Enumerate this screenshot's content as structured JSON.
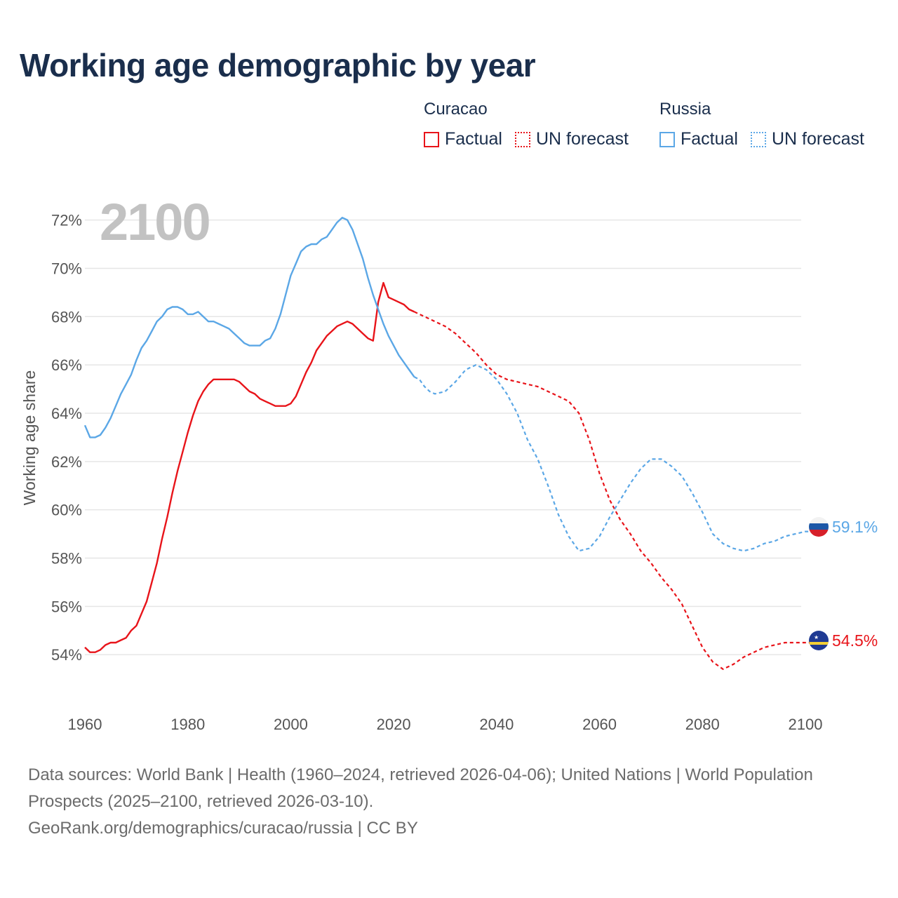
{
  "title": "Working age demographic by year",
  "legend": [
    {
      "country": "Curacao",
      "factual_label": "Factual",
      "forecast_label": "UN forecast",
      "color": "#e8141a"
    },
    {
      "country": "Russia",
      "factual_label": "Factual",
      "forecast_label": "UN forecast",
      "color": "#5ba7e6"
    }
  ],
  "year_watermark": "2100",
  "end_labels": {
    "russia": "59.1%",
    "curacao": "54.5%"
  },
  "footer": {
    "sources": "Data sources: World Bank | Health (1960–2024, retrieved 2026-04-06); United Nations | World Population Prospects (2025–2100, retrieved 2026-03-10).",
    "credit": "GeoRank.org/demographics/curacao/russia | CC BY"
  },
  "chart_data": {
    "type": "line",
    "ylabel": "Working age share",
    "xlabel": "",
    "xlim": [
      1960,
      2103
    ],
    "ylim": [
      52,
      73.5
    ],
    "x_ticks": [
      1960,
      1980,
      2000,
      2020,
      2040,
      2060,
      2080,
      2100
    ],
    "y_ticks": [
      54,
      56,
      58,
      60,
      62,
      64,
      66,
      68,
      70,
      72
    ],
    "y_tick_labels": [
      "54%",
      "56%",
      "58%",
      "60%",
      "62%",
      "64%",
      "66%",
      "68%",
      "70%",
      "72%"
    ],
    "forecast_start": 2024,
    "series": [
      {
        "name": "Curacao",
        "color": "#e8141a",
        "points": [
          [
            1960,
            54.3
          ],
          [
            1961,
            54.1
          ],
          [
            1962,
            54.1
          ],
          [
            1963,
            54.2
          ],
          [
            1964,
            54.4
          ],
          [
            1965,
            54.5
          ],
          [
            1966,
            54.5
          ],
          [
            1967,
            54.6
          ],
          [
            1968,
            54.7
          ],
          [
            1969,
            55.0
          ],
          [
            1970,
            55.2
          ],
          [
            1971,
            55.7
          ],
          [
            1972,
            56.2
          ],
          [
            1973,
            57.0
          ],
          [
            1974,
            57.8
          ],
          [
            1975,
            58.8
          ],
          [
            1976,
            59.7
          ],
          [
            1977,
            60.7
          ],
          [
            1978,
            61.6
          ],
          [
            1979,
            62.4
          ],
          [
            1980,
            63.2
          ],
          [
            1981,
            63.9
          ],
          [
            1982,
            64.5
          ],
          [
            1983,
            64.9
          ],
          [
            1984,
            65.2
          ],
          [
            1985,
            65.4
          ],
          [
            1986,
            65.4
          ],
          [
            1987,
            65.4
          ],
          [
            1988,
            65.4
          ],
          [
            1989,
            65.4
          ],
          [
            1990,
            65.3
          ],
          [
            1991,
            65.1
          ],
          [
            1992,
            64.9
          ],
          [
            1993,
            64.8
          ],
          [
            1994,
            64.6
          ],
          [
            1995,
            64.5
          ],
          [
            1996,
            64.4
          ],
          [
            1997,
            64.3
          ],
          [
            1998,
            64.3
          ],
          [
            1999,
            64.3
          ],
          [
            2000,
            64.4
          ],
          [
            2001,
            64.7
          ],
          [
            2002,
            65.2
          ],
          [
            2003,
            65.7
          ],
          [
            2004,
            66.1
          ],
          [
            2005,
            66.6
          ],
          [
            2006,
            66.9
          ],
          [
            2007,
            67.2
          ],
          [
            2008,
            67.4
          ],
          [
            2009,
            67.6
          ],
          [
            2010,
            67.7
          ],
          [
            2011,
            67.8
          ],
          [
            2012,
            67.7
          ],
          [
            2013,
            67.5
          ],
          [
            2014,
            67.3
          ],
          [
            2015,
            67.1
          ],
          [
            2016,
            67.0
          ],
          [
            2017,
            68.6
          ],
          [
            2018,
            69.4
          ],
          [
            2019,
            68.8
          ],
          [
            2020,
            68.7
          ],
          [
            2021,
            68.6
          ],
          [
            2022,
            68.5
          ],
          [
            2023,
            68.3
          ],
          [
            2024,
            68.2
          ],
          [
            2025,
            68.1
          ],
          [
            2026,
            68.0
          ],
          [
            2028,
            67.8
          ],
          [
            2030,
            67.6
          ],
          [
            2032,
            67.3
          ],
          [
            2034,
            66.9
          ],
          [
            2036,
            66.5
          ],
          [
            2038,
            66.0
          ],
          [
            2040,
            65.6
          ],
          [
            2042,
            65.4
          ],
          [
            2044,
            65.3
          ],
          [
            2046,
            65.2
          ],
          [
            2048,
            65.1
          ],
          [
            2050,
            64.9
          ],
          [
            2052,
            64.7
          ],
          [
            2054,
            64.5
          ],
          [
            2056,
            64.0
          ],
          [
            2058,
            62.9
          ],
          [
            2060,
            61.5
          ],
          [
            2062,
            60.4
          ],
          [
            2064,
            59.6
          ],
          [
            2066,
            59.0
          ],
          [
            2068,
            58.3
          ],
          [
            2070,
            57.8
          ],
          [
            2072,
            57.2
          ],
          [
            2074,
            56.7
          ],
          [
            2076,
            56.1
          ],
          [
            2078,
            55.2
          ],
          [
            2080,
            54.3
          ],
          [
            2082,
            53.7
          ],
          [
            2084,
            53.4
          ],
          [
            2086,
            53.6
          ],
          [
            2088,
            53.9
          ],
          [
            2090,
            54.1
          ],
          [
            2092,
            54.3
          ],
          [
            2094,
            54.4
          ],
          [
            2096,
            54.5
          ],
          [
            2098,
            54.5
          ],
          [
            2100,
            54.5
          ],
          [
            2102,
            54.5
          ]
        ]
      },
      {
        "name": "Russia",
        "color": "#5ba7e6",
        "points": [
          [
            1960,
            63.5
          ],
          [
            1961,
            63.0
          ],
          [
            1962,
            63.0
          ],
          [
            1963,
            63.1
          ],
          [
            1964,
            63.4
          ],
          [
            1965,
            63.8
          ],
          [
            1966,
            64.3
          ],
          [
            1967,
            64.8
          ],
          [
            1968,
            65.2
          ],
          [
            1969,
            65.6
          ],
          [
            1970,
            66.2
          ],
          [
            1971,
            66.7
          ],
          [
            1972,
            67.0
          ],
          [
            1973,
            67.4
          ],
          [
            1974,
            67.8
          ],
          [
            1975,
            68.0
          ],
          [
            1976,
            68.3
          ],
          [
            1977,
            68.4
          ],
          [
            1978,
            68.4
          ],
          [
            1979,
            68.3
          ],
          [
            1980,
            68.1
          ],
          [
            1981,
            68.1
          ],
          [
            1982,
            68.2
          ],
          [
            1983,
            68.0
          ],
          [
            1984,
            67.8
          ],
          [
            1985,
            67.8
          ],
          [
            1986,
            67.7
          ],
          [
            1987,
            67.6
          ],
          [
            1988,
            67.5
          ],
          [
            1989,
            67.3
          ],
          [
            1990,
            67.1
          ],
          [
            1991,
            66.9
          ],
          [
            1992,
            66.8
          ],
          [
            1993,
            66.8
          ],
          [
            1994,
            66.8
          ],
          [
            1995,
            67.0
          ],
          [
            1996,
            67.1
          ],
          [
            1997,
            67.5
          ],
          [
            1998,
            68.1
          ],
          [
            1999,
            68.9
          ],
          [
            2000,
            69.7
          ],
          [
            2001,
            70.2
          ],
          [
            2002,
            70.7
          ],
          [
            2003,
            70.9
          ],
          [
            2004,
            71.0
          ],
          [
            2005,
            71.0
          ],
          [
            2006,
            71.2
          ],
          [
            2007,
            71.3
          ],
          [
            2008,
            71.6
          ],
          [
            2009,
            71.9
          ],
          [
            2010,
            72.1
          ],
          [
            2011,
            72.0
          ],
          [
            2012,
            71.6
          ],
          [
            2013,
            71.0
          ],
          [
            2014,
            70.4
          ],
          [
            2015,
            69.6
          ],
          [
            2016,
            68.9
          ],
          [
            2017,
            68.3
          ],
          [
            2018,
            67.7
          ],
          [
            2019,
            67.2
          ],
          [
            2020,
            66.8
          ],
          [
            2021,
            66.4
          ],
          [
            2022,
            66.1
          ],
          [
            2023,
            65.8
          ],
          [
            2024,
            65.5
          ],
          [
            2025,
            65.4
          ],
          [
            2026,
            65.1
          ],
          [
            2027,
            64.9
          ],
          [
            2028,
            64.8
          ],
          [
            2030,
            64.9
          ],
          [
            2032,
            65.3
          ],
          [
            2034,
            65.8
          ],
          [
            2036,
            66.0
          ],
          [
            2038,
            65.8
          ],
          [
            2040,
            65.4
          ],
          [
            2042,
            64.8
          ],
          [
            2044,
            64.0
          ],
          [
            2046,
            62.9
          ],
          [
            2048,
            62.1
          ],
          [
            2050,
            61.0
          ],
          [
            2052,
            59.8
          ],
          [
            2054,
            58.9
          ],
          [
            2056,
            58.3
          ],
          [
            2058,
            58.4
          ],
          [
            2060,
            58.9
          ],
          [
            2062,
            59.7
          ],
          [
            2064,
            60.4
          ],
          [
            2066,
            61.1
          ],
          [
            2068,
            61.7
          ],
          [
            2070,
            62.1
          ],
          [
            2072,
            62.1
          ],
          [
            2074,
            61.8
          ],
          [
            2076,
            61.4
          ],
          [
            2078,
            60.7
          ],
          [
            2080,
            59.9
          ],
          [
            2082,
            59.0
          ],
          [
            2084,
            58.6
          ],
          [
            2086,
            58.4
          ],
          [
            2088,
            58.3
          ],
          [
            2090,
            58.4
          ],
          [
            2092,
            58.6
          ],
          [
            2094,
            58.7
          ],
          [
            2096,
            58.9
          ],
          [
            2098,
            59.0
          ],
          [
            2100,
            59.1
          ],
          [
            2102,
            59.1
          ]
        ]
      }
    ]
  }
}
